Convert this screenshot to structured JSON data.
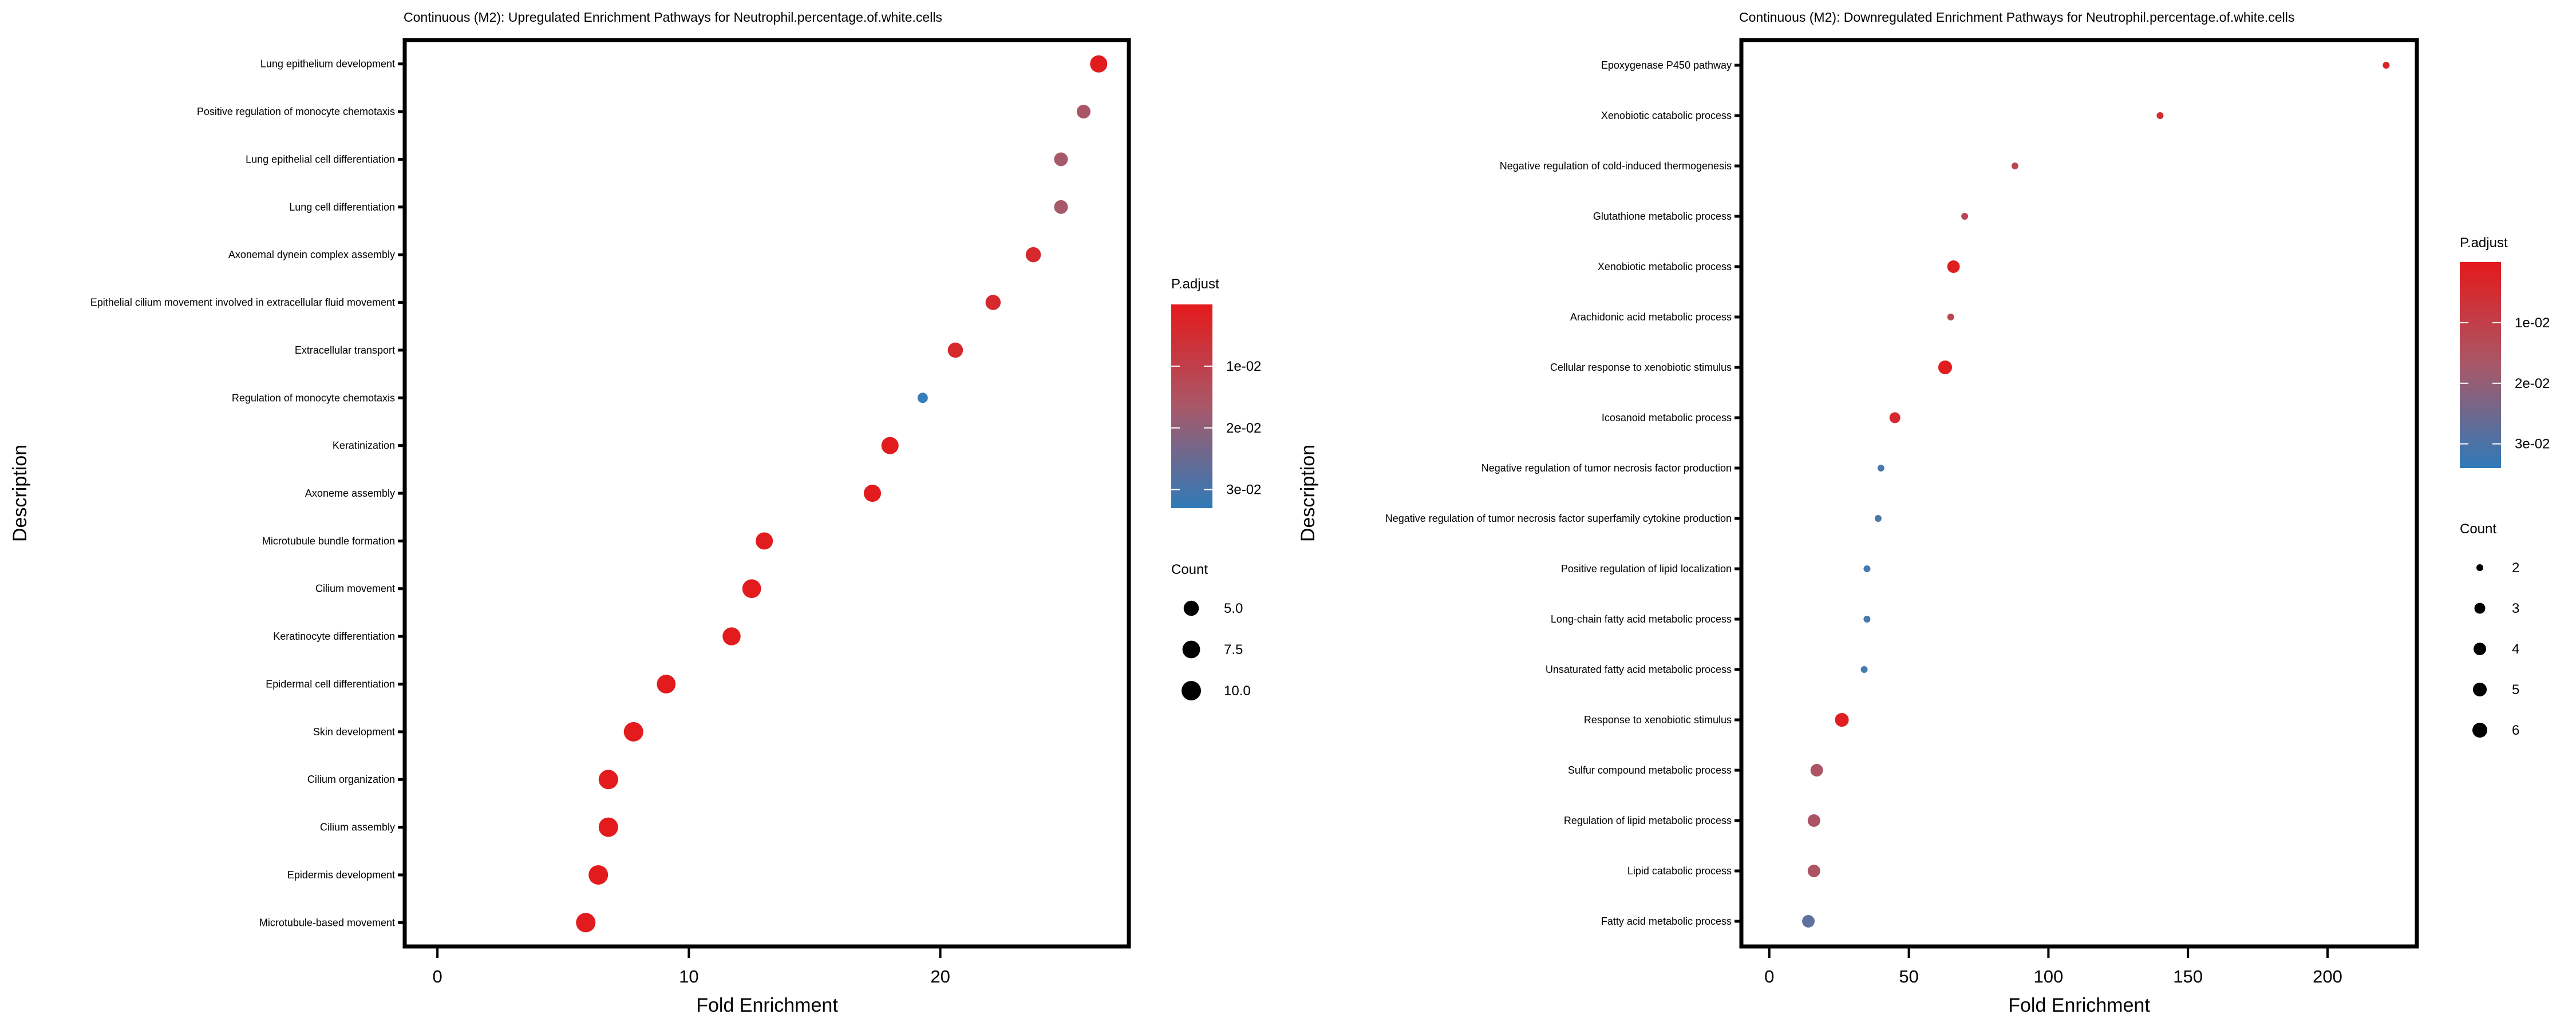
{
  "chart_data": [
    {
      "type": "scatter",
      "subtype": "dot-plot",
      "title": "Continuous (M2): Upregulated Enrichment Pathways for Neutrophil.percentage.of.white.cells",
      "xlabel": "Fold Enrichment",
      "ylabel": "Description",
      "xlim": [
        -1.3,
        27.5
      ],
      "xticks": [
        0,
        10,
        20
      ],
      "grid": false,
      "color_legend": {
        "title": "P.adjust",
        "ticks": [
          "1e-02",
          "2e-02",
          "3e-02"
        ],
        "tick_values": [
          0.01,
          0.02,
          0.03
        ],
        "range": [
          0.0,
          0.033
        ],
        "low_color": "#e41a1c",
        "high_color": "#377eb8"
      },
      "size_legend": {
        "title": "Count",
        "entries": [
          "5.0",
          "7.5",
          "10.0"
        ],
        "values": [
          5.0,
          7.5,
          10.0
        ]
      },
      "points": [
        {
          "label": "Lung epithelium development",
          "x": 26.3,
          "count": 7,
          "p_adjust": 0.0005
        },
        {
          "label": "Positive regulation of monocyte chemotaxis",
          "x": 25.7,
          "count": 4,
          "p_adjust": 0.016
        },
        {
          "label": "Lung epithelial cell differentiation",
          "x": 24.8,
          "count": 4,
          "p_adjust": 0.017
        },
        {
          "label": "Lung cell differentiation",
          "x": 24.8,
          "count": 4,
          "p_adjust": 0.017
        },
        {
          "label": "Axonemal dynein complex assembly",
          "x": 23.7,
          "count": 5,
          "p_adjust": 0.004
        },
        {
          "label": "Epithelial cilium movement involved in extracellular fluid movement",
          "x": 22.1,
          "count": 5,
          "p_adjust": 0.004
        },
        {
          "label": "Extracellular transport",
          "x": 20.6,
          "count": 5,
          "p_adjust": 0.004
        },
        {
          "label": "Regulation of monocyte chemotaxis",
          "x": 19.3,
          "count": 3,
          "p_adjust": 0.033
        },
        {
          "label": "Keratinization",
          "x": 18.0,
          "count": 7,
          "p_adjust": 0.0005
        },
        {
          "label": "Axoneme assembly",
          "x": 17.3,
          "count": 7,
          "p_adjust": 0.0005
        },
        {
          "label": "Microtubule bundle formation",
          "x": 13.0,
          "count": 7,
          "p_adjust": 0.0005
        },
        {
          "label": "Cilium movement",
          "x": 12.5,
          "count": 9,
          "p_adjust": 0.0002
        },
        {
          "label": "Keratinocyte differentiation",
          "x": 11.7,
          "count": 8,
          "p_adjust": 0.0003
        },
        {
          "label": "Epidermal cell differentiation",
          "x": 9.1,
          "count": 9,
          "p_adjust": 0.0002
        },
        {
          "label": "Skin development",
          "x": 7.8,
          "count": 10,
          "p_adjust": 0.0002
        },
        {
          "label": "Cilium organization",
          "x": 6.8,
          "count": 10,
          "p_adjust": 0.0003
        },
        {
          "label": "Cilium assembly",
          "x": 6.8,
          "count": 10,
          "p_adjust": 0.0003
        },
        {
          "label": "Epidermis development",
          "x": 6.4,
          "count": 10,
          "p_adjust": 0.0003
        },
        {
          "label": "Microtubule-based movement",
          "x": 5.9,
          "count": 10,
          "p_adjust": 0.0005
        }
      ]
    },
    {
      "type": "scatter",
      "subtype": "dot-plot",
      "title": "Continuous (M2): Downregulated Enrichment Pathways for Neutrophil.percentage.of.white.cells",
      "xlabel": "Fold Enrichment",
      "ylabel": "Description",
      "xlim": [
        -10,
        232
      ],
      "xticks": [
        0,
        50,
        100,
        150,
        200
      ],
      "grid": false,
      "color_legend": {
        "title": "P.adjust",
        "ticks": [
          "1e-02",
          "2e-02",
          "3e-02"
        ],
        "tick_values": [
          0.01,
          0.02,
          0.03
        ],
        "range": [
          0.0,
          0.034
        ],
        "low_color": "#e41a1c",
        "high_color": "#377eb8"
      },
      "size_legend": {
        "title": "Count",
        "entries": [
          "2",
          "3",
          "4",
          "5",
          "6"
        ],
        "values": [
          2,
          3,
          4,
          5,
          6
        ]
      },
      "points": [
        {
          "label": "Epoxygenase P450 pathway",
          "x": 221,
          "count": 2,
          "p_adjust": 0.003
        },
        {
          "label": "Xenobiotic catabolic process",
          "x": 140,
          "count": 2,
          "p_adjust": 0.005
        },
        {
          "label": "Negative regulation of cold-induced thermogenesis",
          "x": 88,
          "count": 2,
          "p_adjust": 0.012
        },
        {
          "label": "Glutathione metabolic process",
          "x": 70,
          "count": 2,
          "p_adjust": 0.012
        },
        {
          "label": "Xenobiotic metabolic process",
          "x": 66,
          "count": 4,
          "p_adjust": 0.001
        },
        {
          "label": "Arachidonic acid metabolic process",
          "x": 65,
          "count": 2,
          "p_adjust": 0.012
        },
        {
          "label": "Cellular response to xenobiotic stimulus",
          "x": 63,
          "count": 5,
          "p_adjust": 0.001
        },
        {
          "label": "Icosanoid metabolic process",
          "x": 45,
          "count": 3,
          "p_adjust": 0.004
        },
        {
          "label": "Negative regulation of tumor necrosis factor production",
          "x": 40,
          "count": 2,
          "p_adjust": 0.031
        },
        {
          "label": "Negative regulation of tumor necrosis factor superfamily cytokine production",
          "x": 39,
          "count": 2,
          "p_adjust": 0.031
        },
        {
          "label": "Positive regulation of lipid localization",
          "x": 35,
          "count": 2,
          "p_adjust": 0.032
        },
        {
          "label": "Long-chain fatty acid metabolic process",
          "x": 35,
          "count": 2,
          "p_adjust": 0.032
        },
        {
          "label": "Unsaturated fatty acid metabolic process",
          "x": 34,
          "count": 2,
          "p_adjust": 0.032
        },
        {
          "label": "Response to xenobiotic stimulus",
          "x": 26,
          "count": 5,
          "p_adjust": 0.001
        },
        {
          "label": "Sulfur compound metabolic process",
          "x": 17,
          "count": 4,
          "p_adjust": 0.016
        },
        {
          "label": "Regulation of lipid metabolic process",
          "x": 16,
          "count": 4,
          "p_adjust": 0.016
        },
        {
          "label": "Lipid catabolic process",
          "x": 16,
          "count": 4,
          "p_adjust": 0.016
        },
        {
          "label": "Fatty acid metabolic process",
          "x": 14,
          "count": 4,
          "p_adjust": 0.028
        }
      ]
    }
  ]
}
